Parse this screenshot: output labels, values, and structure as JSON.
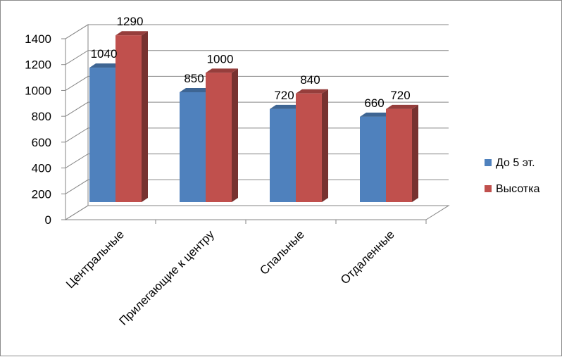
{
  "chart_data": {
    "type": "bar",
    "categories": [
      "Центральные",
      "Прилегающие к центру",
      "Спальные",
      "Отдаленные"
    ],
    "series": [
      {
        "name": "До 5 эт.",
        "values": [
          1040,
          850,
          720,
          660
        ],
        "color": "#4f81bd"
      },
      {
        "name": "Высотка",
        "values": [
          1290,
          1000,
          840,
          720
        ],
        "color": "#c0504d"
      }
    ],
    "yticks": [
      0,
      200,
      400,
      600,
      800,
      1000,
      1200,
      1400
    ],
    "ylim": [
      0,
      1400
    ],
    "grid": true,
    "legend": "right",
    "style": "3d-clustered-column"
  }
}
